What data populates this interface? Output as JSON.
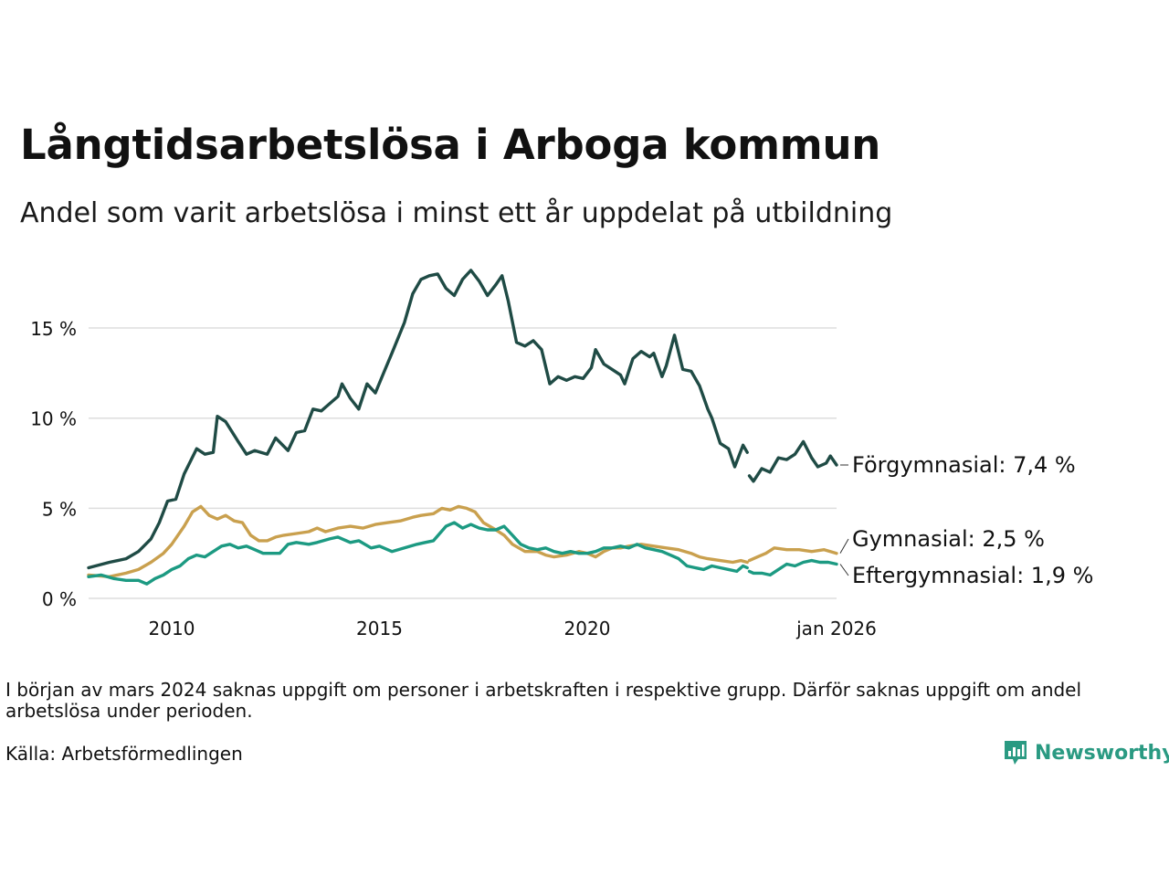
{
  "header": {
    "title": "Långtidsarbetslösa i Arboga kommun",
    "subtitle": "Andel som varit arbetslösa i minst ett år uppdelat på utbildning"
  },
  "chart_data": {
    "type": "line",
    "title": "Långtidsarbetslösa i Arboga kommun",
    "subtitle": "Andel som varit arbetslösa i minst ett år uppdelat på utbildning",
    "xlabel": "",
    "ylabel": "",
    "x_range": [
      2008.0,
      2026.0
    ],
    "ylim": [
      0,
      18.5
    ],
    "grid": "horizontal",
    "x_ticks": [
      {
        "value": 2010,
        "label": "2010"
      },
      {
        "value": 2015,
        "label": "2015"
      },
      {
        "value": 2020,
        "label": "2020"
      },
      {
        "value": 2026,
        "label": "jan 2026"
      }
    ],
    "y_ticks": [
      {
        "value": 0,
        "label": "0 %"
      },
      {
        "value": 5,
        "label": "5 %"
      },
      {
        "value": 10,
        "label": "10 %"
      },
      {
        "value": 15,
        "label": "15 %"
      }
    ],
    "gap": {
      "from": 2023.75,
      "to": 2023.9,
      "description": "missing data around March 2024"
    },
    "series": [
      {
        "name": "Förgymnasial",
        "label": "Förgymnasial: 7,4 %",
        "color": "#1f4b45",
        "points": [
          [
            2008.0,
            1.7
          ],
          [
            2008.5,
            2.0
          ],
          [
            2008.9,
            2.2
          ],
          [
            2009.2,
            2.6
          ],
          [
            2009.5,
            3.3
          ],
          [
            2009.7,
            4.2
          ],
          [
            2009.9,
            5.4
          ],
          [
            2010.1,
            5.5
          ],
          [
            2010.3,
            6.9
          ],
          [
            2010.6,
            8.3
          ],
          [
            2010.8,
            8.0
          ],
          [
            2011.0,
            8.1
          ],
          [
            2011.1,
            10.1
          ],
          [
            2011.3,
            9.8
          ],
          [
            2011.6,
            8.7
          ],
          [
            2011.8,
            8.0
          ],
          [
            2012.0,
            8.2
          ],
          [
            2012.3,
            8.0
          ],
          [
            2012.5,
            8.9
          ],
          [
            2012.8,
            8.2
          ],
          [
            2013.0,
            9.2
          ],
          [
            2013.2,
            9.3
          ],
          [
            2013.4,
            10.5
          ],
          [
            2013.6,
            10.4
          ],
          [
            2013.8,
            10.8
          ],
          [
            2014.0,
            11.2
          ],
          [
            2014.1,
            11.9
          ],
          [
            2014.3,
            11.1
          ],
          [
            2014.5,
            10.5
          ],
          [
            2014.7,
            11.9
          ],
          [
            2014.9,
            11.4
          ],
          [
            2015.1,
            12.5
          ],
          [
            2015.3,
            13.6
          ],
          [
            2015.6,
            15.3
          ],
          [
            2015.8,
            16.9
          ],
          [
            2016.0,
            17.7
          ],
          [
            2016.2,
            17.9
          ],
          [
            2016.4,
            18.0
          ],
          [
            2016.6,
            17.2
          ],
          [
            2016.8,
            16.8
          ],
          [
            2017.0,
            17.7
          ],
          [
            2017.2,
            18.2
          ],
          [
            2017.4,
            17.6
          ],
          [
            2017.6,
            16.8
          ],
          [
            2017.8,
            17.4
          ],
          [
            2017.95,
            17.9
          ],
          [
            2018.1,
            16.5
          ],
          [
            2018.3,
            14.2
          ],
          [
            2018.5,
            14.0
          ],
          [
            2018.7,
            14.3
          ],
          [
            2018.9,
            13.8
          ],
          [
            2019.1,
            11.9
          ],
          [
            2019.3,
            12.3
          ],
          [
            2019.5,
            12.1
          ],
          [
            2019.7,
            12.3
          ],
          [
            2019.9,
            12.2
          ],
          [
            2020.1,
            12.8
          ],
          [
            2020.2,
            13.8
          ],
          [
            2020.4,
            13.0
          ],
          [
            2020.6,
            12.7
          ],
          [
            2020.8,
            12.4
          ],
          [
            2020.9,
            11.9
          ],
          [
            2021.1,
            13.3
          ],
          [
            2021.3,
            13.7
          ],
          [
            2021.5,
            13.4
          ],
          [
            2021.6,
            13.6
          ],
          [
            2021.8,
            12.3
          ],
          [
            2021.9,
            12.9
          ],
          [
            2022.1,
            14.6
          ],
          [
            2022.3,
            12.7
          ],
          [
            2022.5,
            12.6
          ],
          [
            2022.7,
            11.8
          ],
          [
            2022.9,
            10.5
          ],
          [
            2023.0,
            10.0
          ],
          [
            2023.2,
            8.6
          ],
          [
            2023.4,
            8.3
          ],
          [
            2023.55,
            7.3
          ],
          [
            2023.75,
            8.5
          ],
          [
            2023.85,
            8.1
          ],
          null,
          [
            2023.9,
            6.8
          ],
          [
            2024.0,
            6.5
          ],
          [
            2024.2,
            7.2
          ],
          [
            2024.4,
            7.0
          ],
          [
            2024.6,
            7.8
          ],
          [
            2024.8,
            7.7
          ],
          [
            2025.0,
            8.0
          ],
          [
            2025.2,
            8.7
          ],
          [
            2025.4,
            7.8
          ],
          [
            2025.55,
            7.3
          ],
          [
            2025.75,
            7.5
          ],
          [
            2025.85,
            7.9
          ],
          [
            2026.0,
            7.4
          ]
        ]
      },
      {
        "name": "Gymnasial",
        "label": "Gymnasial: 2,5 %",
        "color": "#c9a04e",
        "points": [
          [
            2008.0,
            1.3
          ],
          [
            2008.5,
            1.2
          ],
          [
            2008.9,
            1.4
          ],
          [
            2009.2,
            1.6
          ],
          [
            2009.5,
            2.0
          ],
          [
            2009.8,
            2.5
          ],
          [
            2010.0,
            3.0
          ],
          [
            2010.3,
            4.0
          ],
          [
            2010.5,
            4.8
          ],
          [
            2010.7,
            5.1
          ],
          [
            2010.9,
            4.6
          ],
          [
            2011.1,
            4.4
          ],
          [
            2011.3,
            4.6
          ],
          [
            2011.5,
            4.3
          ],
          [
            2011.7,
            4.2
          ],
          [
            2011.9,
            3.5
          ],
          [
            2012.1,
            3.2
          ],
          [
            2012.3,
            3.2
          ],
          [
            2012.5,
            3.4
          ],
          [
            2012.7,
            3.5
          ],
          [
            2013.0,
            3.6
          ],
          [
            2013.3,
            3.7
          ],
          [
            2013.5,
            3.9
          ],
          [
            2013.7,
            3.7
          ],
          [
            2014.0,
            3.9
          ],
          [
            2014.3,
            4.0
          ],
          [
            2014.6,
            3.9
          ],
          [
            2014.9,
            4.1
          ],
          [
            2015.2,
            4.2
          ],
          [
            2015.5,
            4.3
          ],
          [
            2015.8,
            4.5
          ],
          [
            2016.0,
            4.6
          ],
          [
            2016.3,
            4.7
          ],
          [
            2016.5,
            5.0
          ],
          [
            2016.7,
            4.9
          ],
          [
            2016.9,
            5.1
          ],
          [
            2017.1,
            5.0
          ],
          [
            2017.3,
            4.8
          ],
          [
            2017.5,
            4.2
          ],
          [
            2017.8,
            3.8
          ],
          [
            2018.0,
            3.5
          ],
          [
            2018.2,
            3.0
          ],
          [
            2018.5,
            2.6
          ],
          [
            2018.8,
            2.6
          ],
          [
            2019.0,
            2.4
          ],
          [
            2019.2,
            2.3
          ],
          [
            2019.5,
            2.4
          ],
          [
            2019.8,
            2.6
          ],
          [
            2020.0,
            2.5
          ],
          [
            2020.2,
            2.3
          ],
          [
            2020.4,
            2.6
          ],
          [
            2020.6,
            2.8
          ],
          [
            2020.8,
            2.8
          ],
          [
            2021.0,
            2.9
          ],
          [
            2021.3,
            3.0
          ],
          [
            2021.6,
            2.9
          ],
          [
            2021.9,
            2.8
          ],
          [
            2022.2,
            2.7
          ],
          [
            2022.5,
            2.5
          ],
          [
            2022.7,
            2.3
          ],
          [
            2022.9,
            2.2
          ],
          [
            2023.2,
            2.1
          ],
          [
            2023.5,
            2.0
          ],
          [
            2023.7,
            2.1
          ],
          [
            2023.85,
            2.0
          ],
          null,
          [
            2023.9,
            2.1
          ],
          [
            2024.1,
            2.3
          ],
          [
            2024.3,
            2.5
          ],
          [
            2024.5,
            2.8
          ],
          [
            2024.8,
            2.7
          ],
          [
            2025.1,
            2.7
          ],
          [
            2025.4,
            2.6
          ],
          [
            2025.7,
            2.7
          ],
          [
            2026.0,
            2.5
          ]
        ]
      },
      {
        "name": "Eftergymnasial",
        "label": "Eftergymnasial: 1,9 %",
        "color": "#1c9a82",
        "points": [
          [
            2008.0,
            1.2
          ],
          [
            2008.3,
            1.3
          ],
          [
            2008.6,
            1.1
          ],
          [
            2008.9,
            1.0
          ],
          [
            2009.2,
            1.0
          ],
          [
            2009.4,
            0.8
          ],
          [
            2009.6,
            1.1
          ],
          [
            2009.8,
            1.3
          ],
          [
            2010.0,
            1.6
          ],
          [
            2010.2,
            1.8
          ],
          [
            2010.4,
            2.2
          ],
          [
            2010.6,
            2.4
          ],
          [
            2010.8,
            2.3
          ],
          [
            2011.0,
            2.6
          ],
          [
            2011.2,
            2.9
          ],
          [
            2011.4,
            3.0
          ],
          [
            2011.6,
            2.8
          ],
          [
            2011.8,
            2.9
          ],
          [
            2012.0,
            2.7
          ],
          [
            2012.2,
            2.5
          ],
          [
            2012.4,
            2.5
          ],
          [
            2012.6,
            2.5
          ],
          [
            2012.8,
            3.0
          ],
          [
            2013.0,
            3.1
          ],
          [
            2013.3,
            3.0
          ],
          [
            2013.5,
            3.1
          ],
          [
            2013.8,
            3.3
          ],
          [
            2014.0,
            3.4
          ],
          [
            2014.3,
            3.1
          ],
          [
            2014.5,
            3.2
          ],
          [
            2014.8,
            2.8
          ],
          [
            2015.0,
            2.9
          ],
          [
            2015.3,
            2.6
          ],
          [
            2015.6,
            2.8
          ],
          [
            2015.9,
            3.0
          ],
          [
            2016.1,
            3.1
          ],
          [
            2016.3,
            3.2
          ],
          [
            2016.6,
            4.0
          ],
          [
            2016.8,
            4.2
          ],
          [
            2017.0,
            3.9
          ],
          [
            2017.2,
            4.1
          ],
          [
            2017.4,
            3.9
          ],
          [
            2017.6,
            3.8
          ],
          [
            2017.8,
            3.8
          ],
          [
            2018.0,
            4.0
          ],
          [
            2018.2,
            3.5
          ],
          [
            2018.4,
            3.0
          ],
          [
            2018.6,
            2.8
          ],
          [
            2018.8,
            2.7
          ],
          [
            2019.0,
            2.8
          ],
          [
            2019.2,
            2.6
          ],
          [
            2019.4,
            2.5
          ],
          [
            2019.6,
            2.6
          ],
          [
            2019.8,
            2.5
          ],
          [
            2020.0,
            2.5
          ],
          [
            2020.2,
            2.6
          ],
          [
            2020.4,
            2.8
          ],
          [
            2020.6,
            2.8
          ],
          [
            2020.8,
            2.9
          ],
          [
            2021.0,
            2.8
          ],
          [
            2021.2,
            3.0
          ],
          [
            2021.4,
            2.8
          ],
          [
            2021.6,
            2.7
          ],
          [
            2021.8,
            2.6
          ],
          [
            2022.0,
            2.4
          ],
          [
            2022.2,
            2.2
          ],
          [
            2022.4,
            1.8
          ],
          [
            2022.6,
            1.7
          ],
          [
            2022.8,
            1.6
          ],
          [
            2023.0,
            1.8
          ],
          [
            2023.2,
            1.7
          ],
          [
            2023.4,
            1.6
          ],
          [
            2023.6,
            1.5
          ],
          [
            2023.75,
            1.8
          ],
          [
            2023.85,
            1.7
          ],
          null,
          [
            2023.9,
            1.5
          ],
          [
            2024.0,
            1.4
          ],
          [
            2024.2,
            1.4
          ],
          [
            2024.4,
            1.3
          ],
          [
            2024.6,
            1.6
          ],
          [
            2024.8,
            1.9
          ],
          [
            2025.0,
            1.8
          ],
          [
            2025.2,
            2.0
          ],
          [
            2025.4,
            2.1
          ],
          [
            2025.6,
            2.0
          ],
          [
            2025.8,
            2.0
          ],
          [
            2026.0,
            1.9
          ]
        ]
      }
    ]
  },
  "footer": {
    "note": "I början av mars 2024 saknas uppgift om personer i arbetskraften i respektive grupp. Därför saknas uppgift om andel arbetslösa under perioden.",
    "source": "Källa: Arbetsförmedlingen",
    "logo_text": "Newsworthy",
    "logo_color": "#2a9a82"
  }
}
